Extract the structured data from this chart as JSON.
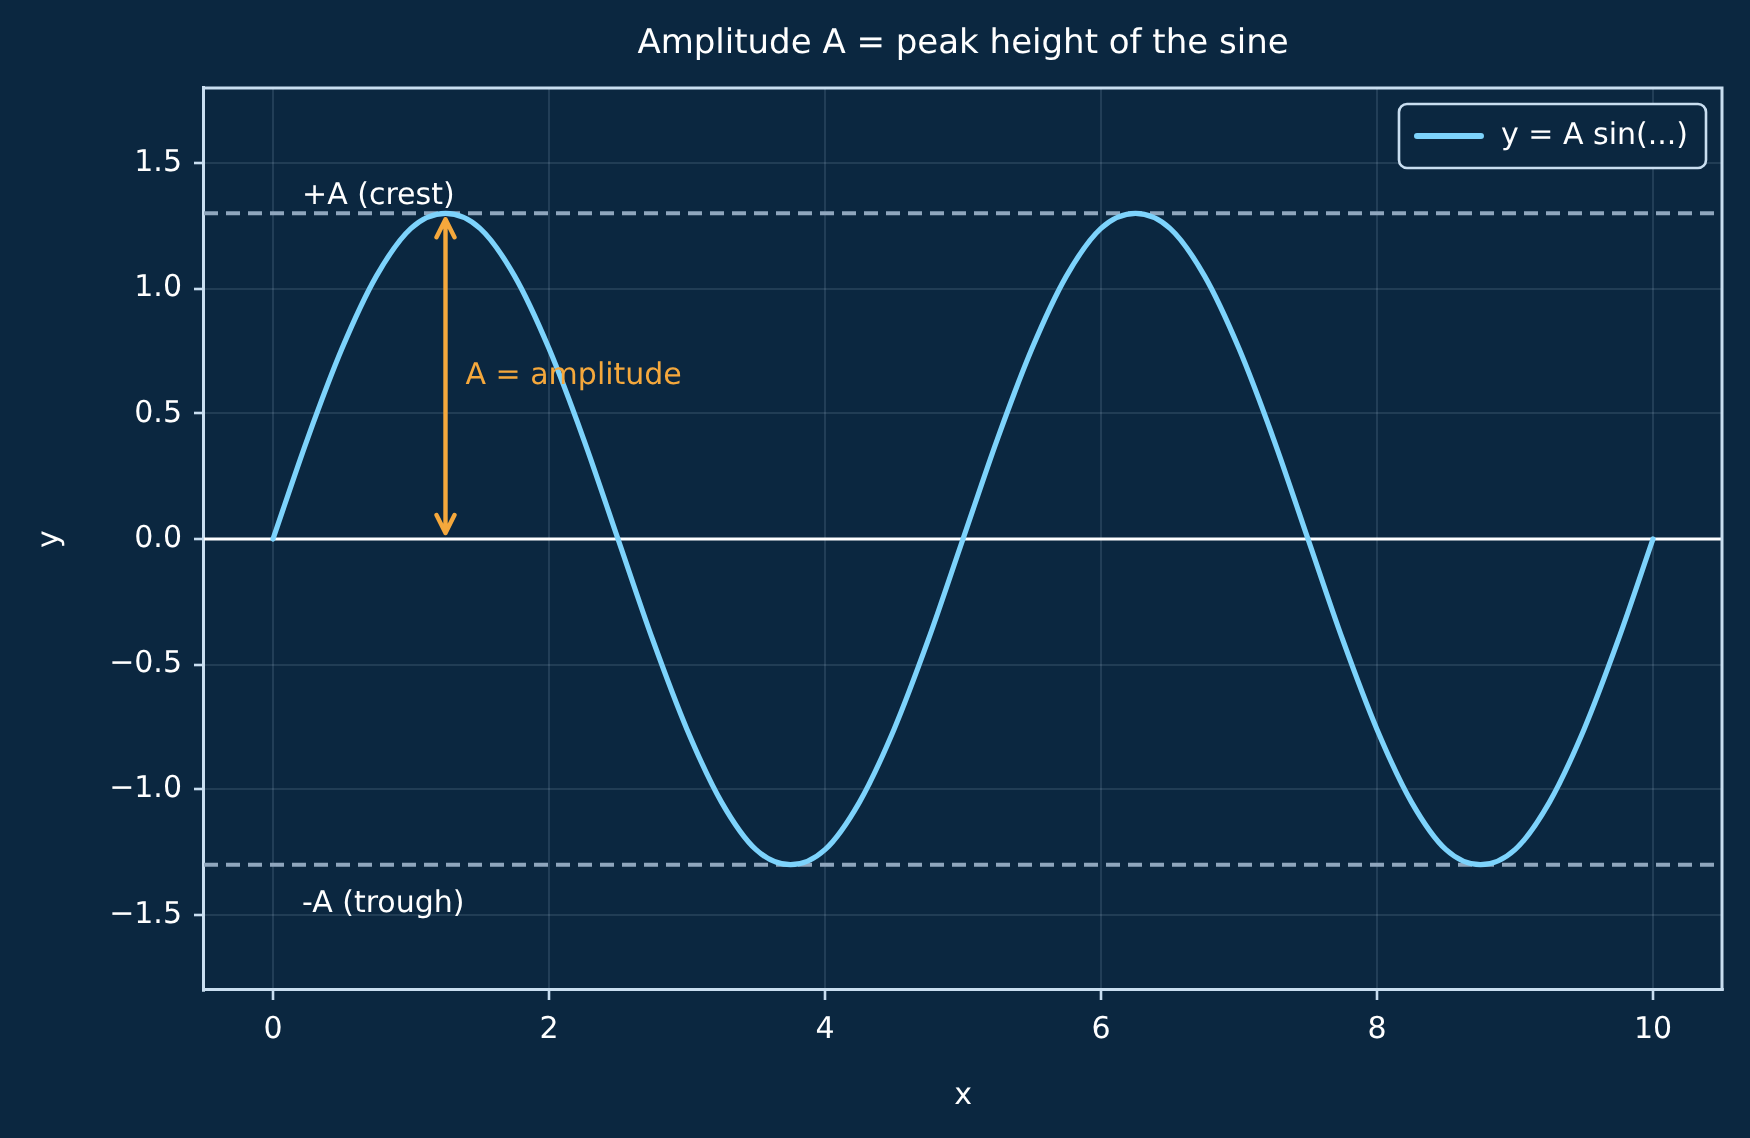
{
  "chart_data": {
    "type": "line",
    "title": "Amplitude A = peak height of the sine",
    "xlabel": "x",
    "ylabel": "y",
    "x": [
      0,
      0.25,
      0.5,
      0.75,
      1,
      1.25,
      1.5,
      1.75,
      2,
      2.25,
      2.5,
      2.75,
      3,
      3.25,
      3.5,
      3.75,
      4,
      4.25,
      4.5,
      4.75,
      5,
      5.25,
      5.5,
      5.75,
      6,
      6.25,
      6.5,
      6.75,
      7,
      7.25,
      7.5,
      7.75,
      8,
      8.25,
      8.5,
      8.75,
      9,
      9.25,
      9.5,
      9.75,
      10
    ],
    "series": [
      {
        "name": "y = A sin(...)",
        "color": "#7dd3fc",
        "values": [
          0,
          0.4,
          0.76,
          1.05,
          1.24,
          1.3,
          1.24,
          1.05,
          0.76,
          0.4,
          0,
          -0.4,
          -0.76,
          -1.05,
          -1.24,
          -1.3,
          -1.24,
          -1.05,
          -0.76,
          -0.4,
          0,
          0.4,
          0.76,
          1.05,
          1.24,
          1.3,
          1.24,
          1.05,
          0.76,
          0.4,
          0,
          -0.4,
          -0.76,
          -1.05,
          -1.24,
          -1.3,
          -1.24,
          -1.05,
          -0.76,
          -0.4,
          0
        ]
      }
    ],
    "xlim": [
      -0.5,
      10.5
    ],
    "xticks": [
      0,
      2,
      4,
      6,
      8,
      10
    ],
    "ylim": [
      -1.8,
      1.8
    ],
    "yticks": [
      {
        "value": -1.5,
        "label": "−1.5"
      },
      {
        "value": -1,
        "label": "−1.0"
      },
      {
        "value": -0.5,
        "label": "−0.5"
      },
      {
        "value": 0,
        "label": "0.0"
      },
      {
        "value": 0.5,
        "label": "0.5"
      },
      {
        "value": 1,
        "label": "1.0"
      },
      {
        "value": 1.5,
        "label": "1.5"
      }
    ],
    "ref_lines": [
      {
        "axis": "y",
        "value": 1.3,
        "label": "+A (crest)",
        "color": "#8fa6bd",
        "line_style": "dashed"
      },
      {
        "axis": "y",
        "value": -1.3,
        "label": "-A (trough)",
        "color": "#8fa6bd",
        "line_style": "dashed"
      },
      {
        "axis": "y",
        "value": 0,
        "color": "#ffffff",
        "line_style": "solid"
      }
    ],
    "annotations": [
      "A = amplitude"
    ],
    "grid": true,
    "legend": "top right"
  }
}
